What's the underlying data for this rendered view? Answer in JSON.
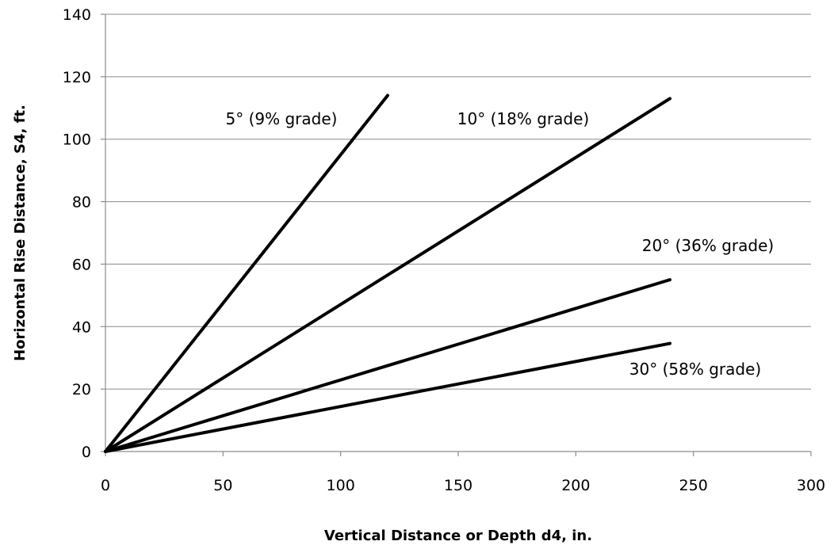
{
  "chart_data": {
    "type": "line",
    "title": "",
    "xlabel": "Vertical Distance or Depth d4, in.",
    "ylabel": "Horizontal Rise Distance, S4, ft.",
    "xlim": [
      0,
      300
    ],
    "ylim": [
      0,
      140
    ],
    "xticks": [
      0,
      50,
      100,
      150,
      200,
      250,
      300
    ],
    "yticks": [
      0,
      20,
      40,
      60,
      80,
      100,
      120,
      140
    ],
    "grid": "horizontal",
    "series": [
      {
        "name": "5° (9% grade)",
        "x": [
          0,
          60,
          120
        ],
        "y": [
          0,
          57,
          114
        ]
      },
      {
        "name": "10° (18% grade)",
        "x": [
          0,
          120,
          240
        ],
        "y": [
          0,
          56.5,
          113
        ]
      },
      {
        "name": "20° (36% grade)",
        "x": [
          0,
          120,
          240
        ],
        "y": [
          0,
          27.5,
          55
        ]
      },
      {
        "name": "30° (58% grade)",
        "x": [
          0,
          120,
          240
        ],
        "y": [
          0,
          17.3,
          34.6
        ]
      }
    ],
    "colors": {
      "line": "#000000",
      "grid": "#8c8c8c"
    }
  }
}
